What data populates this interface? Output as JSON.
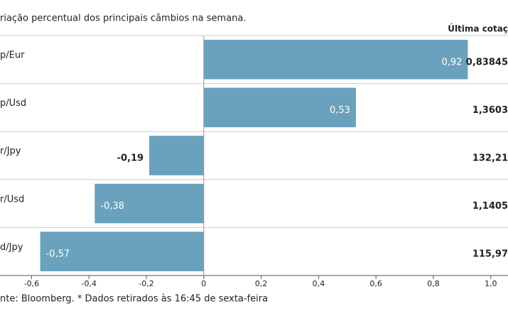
{
  "chart_data": {
    "type": "bar",
    "orientation": "horizontal",
    "subtitle": "riação percentual dos principais câmbios na semana.",
    "right_header": "Última cotaç",
    "categories": [
      "p/Eur",
      "p/Usd",
      "r/Jpy",
      "r/Usd",
      "d/Jpy"
    ],
    "values": [
      0.92,
      0.53,
      -0.19,
      -0.38,
      -0.57
    ],
    "value_labels": [
      "0,92",
      "0,53",
      "-0,19",
      "-0,38",
      "-0,57"
    ],
    "last_quotes": [
      "0,83845",
      "1,3603",
      "132,21",
      "1,1405",
      "115,97"
    ],
    "color": "#6aa1bc",
    "xlim": [
      -0.71,
      1.06
    ],
    "xticks": [
      {
        "value": -0.6,
        "label": "-0,6"
      },
      {
        "value": -0.4,
        "label": "-0,4"
      },
      {
        "value": -0.2,
        "label": "-0,2"
      },
      0,
      {
        "value": 0.2,
        "label": "0,2"
      },
      {
        "value": 0.4,
        "label": "0,4"
      },
      {
        "value": 0.6,
        "label": "0,6"
      },
      {
        "value": 0.8,
        "label": "0,8"
      },
      {
        "value": 1.0,
        "label": "1,0"
      }
    ],
    "source": "nte: Bloomberg.  * Dados retirados às 16:45 de sexta-feira"
  }
}
